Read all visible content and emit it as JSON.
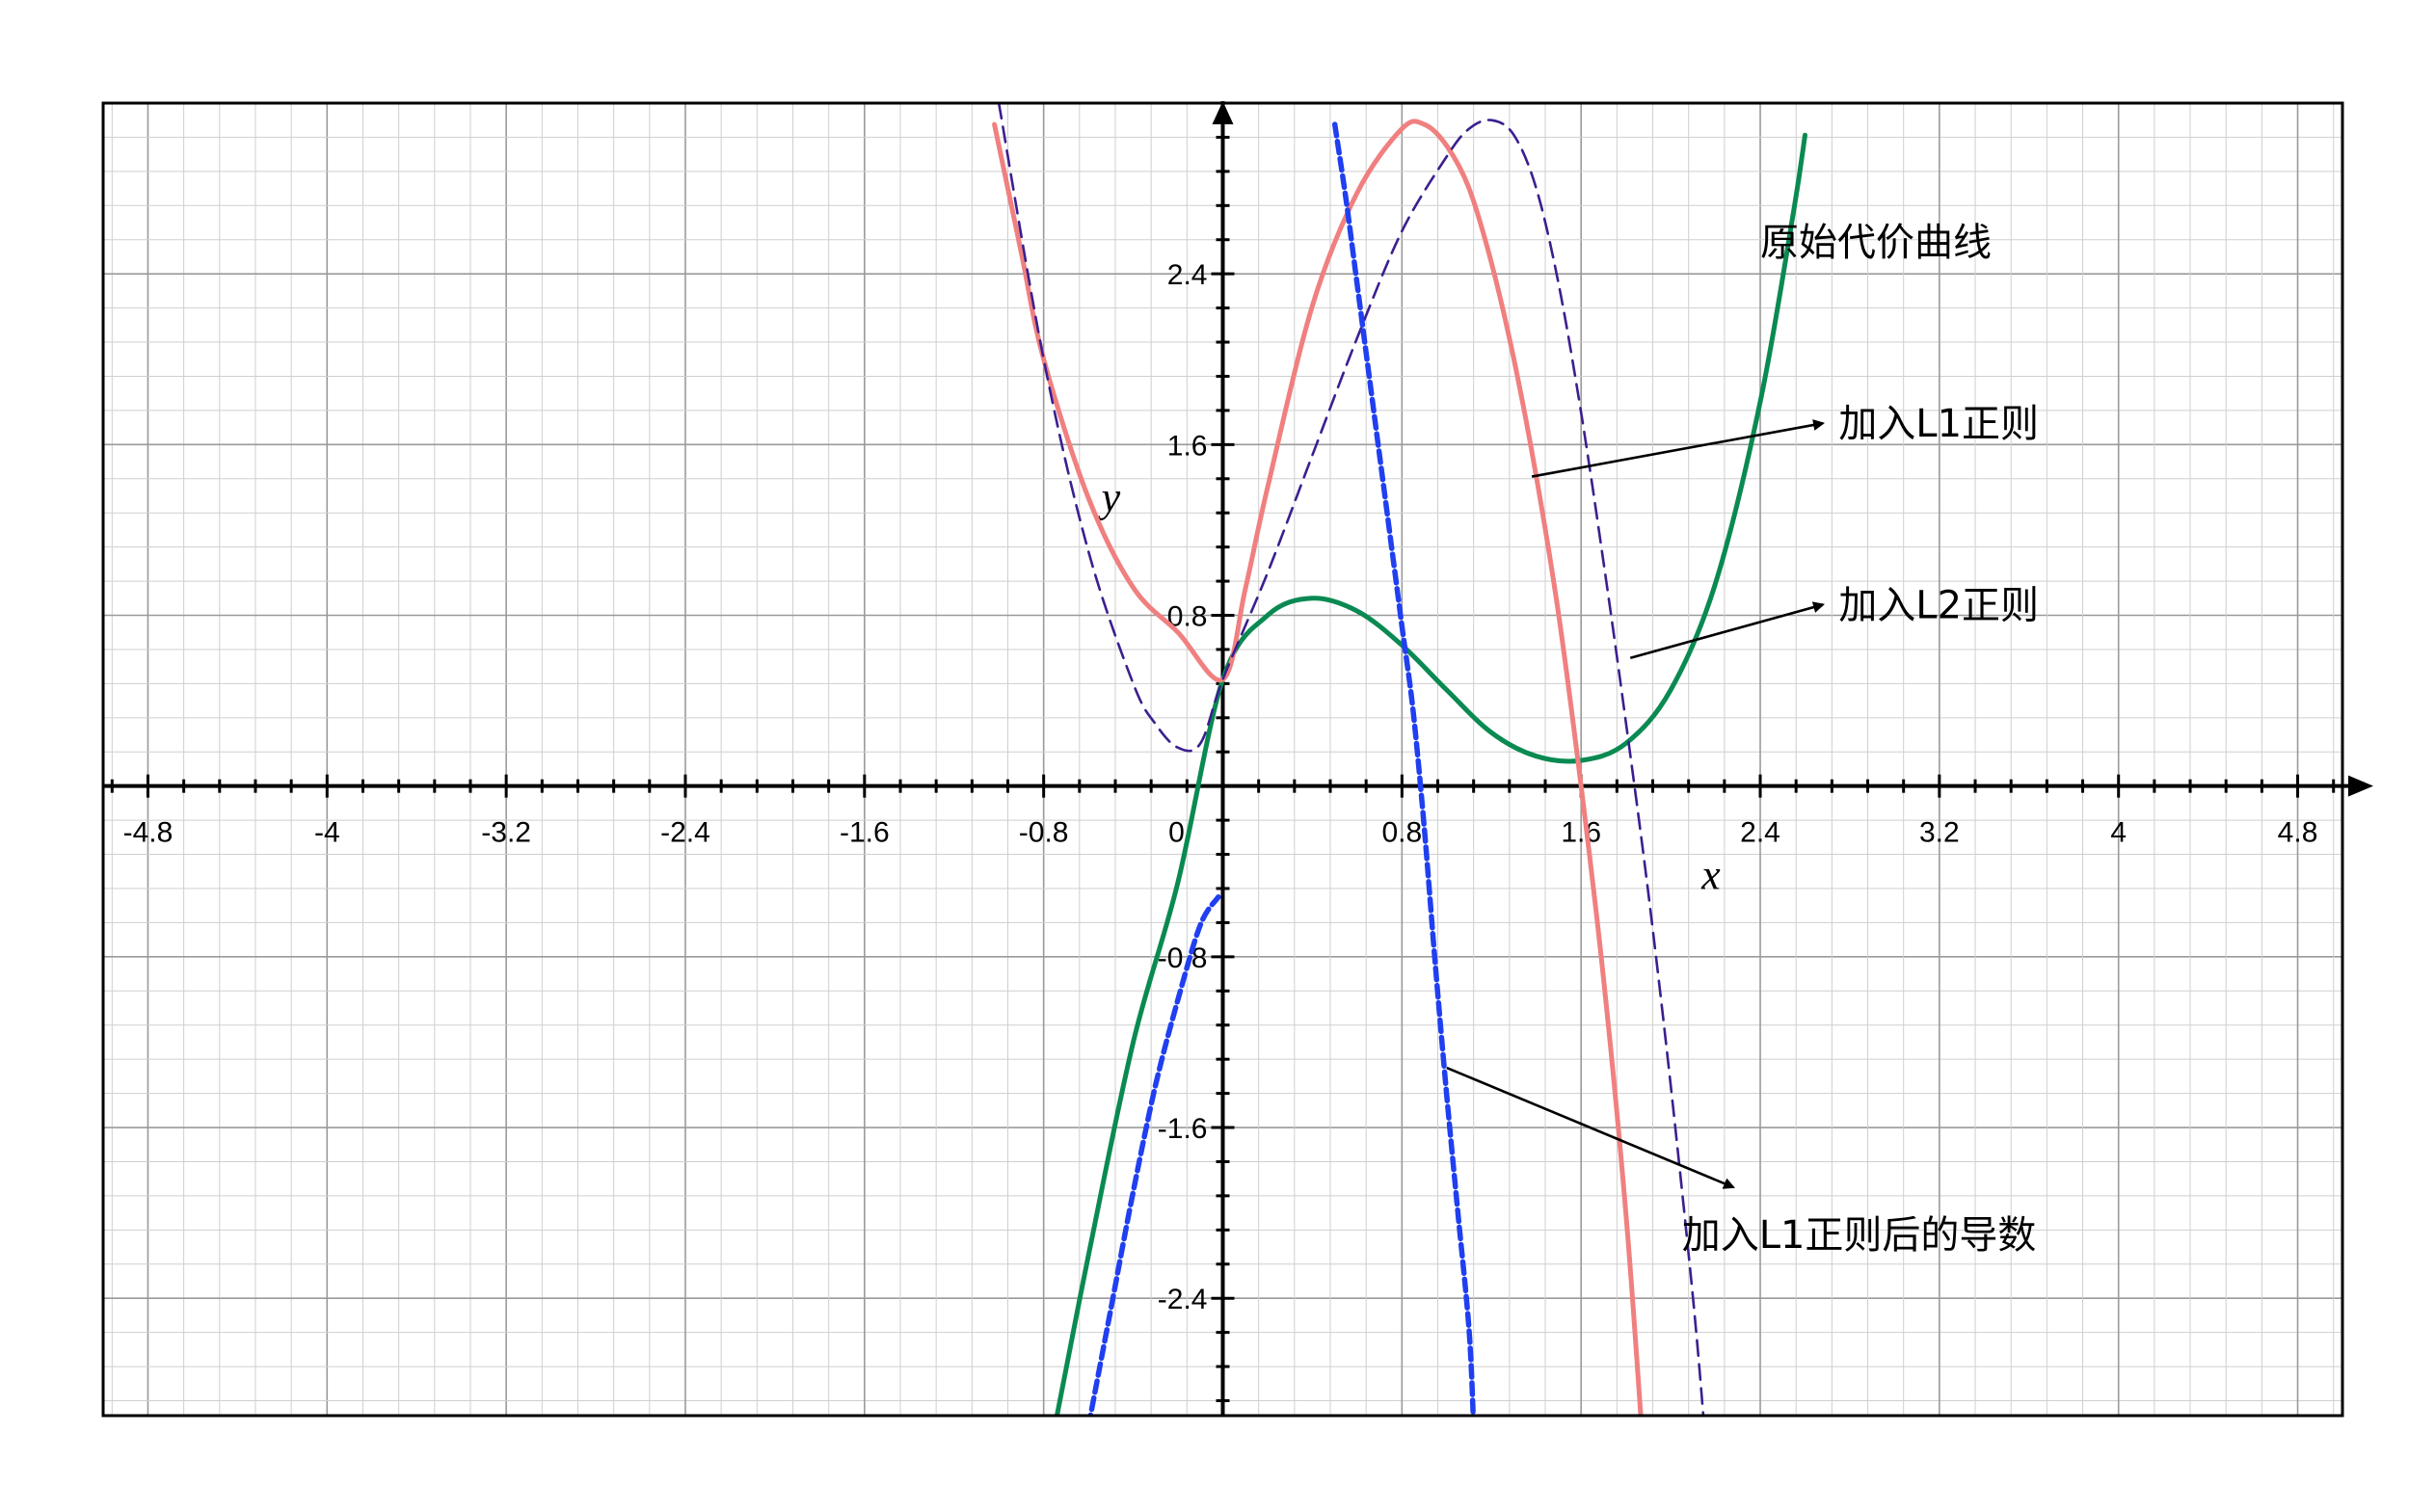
{
  "chart_data": {
    "type": "line",
    "title": "",
    "xlabel": "x",
    "ylabel": "y",
    "xlim": [
      -5.0,
      5.0
    ],
    "ylim": [
      -2.95,
      3.2
    ],
    "grid": true,
    "x_ticks": [
      "-4.8",
      "-4",
      "-3.2",
      "-2.4",
      "-1.6",
      "-0.8",
      "0",
      "0.8",
      "1.6",
      "2.4",
      "3.2",
      "4",
      "4.8"
    ],
    "y_ticks": [
      "2.4",
      "1.6",
      "0.8",
      "-0.8",
      "-1.6",
      "-2.4"
    ],
    "colors": {
      "original": "#0a8a52",
      "l1": "#f08080",
      "l2": "#3b1f8f",
      "l1_derivative": "#1f3ff0",
      "grid_major": "#9a9a9a",
      "grid_minor": "#cfcfcf",
      "axis": "#000000"
    },
    "series": [
      {
        "key": "original",
        "style": "solid",
        "points": [
          [
            -0.75,
            -3.0
          ],
          [
            -0.6,
            -2.2
          ],
          [
            -0.4,
            -1.2
          ],
          [
            -0.2,
            -0.45
          ],
          [
            0.0,
            0.5
          ],
          [
            0.2,
            0.8
          ],
          [
            0.4,
            0.88
          ],
          [
            0.6,
            0.82
          ],
          [
            0.8,
            0.66
          ],
          [
            1.0,
            0.45
          ],
          [
            1.2,
            0.25
          ],
          [
            1.4,
            0.14
          ],
          [
            1.6,
            0.12
          ],
          [
            1.8,
            0.2
          ],
          [
            2.0,
            0.45
          ],
          [
            2.2,
            0.95
          ],
          [
            2.4,
            1.8
          ],
          [
            2.55,
            2.7
          ],
          [
            2.6,
            3.05
          ]
        ]
      },
      {
        "key": "l1",
        "style": "solid",
        "points": [
          [
            -1.02,
            3.1
          ],
          [
            -0.9,
            2.5
          ],
          [
            -0.8,
            2.0
          ],
          [
            -0.6,
            1.35
          ],
          [
            -0.4,
            0.93
          ],
          [
            -0.2,
            0.72
          ],
          [
            0.0,
            0.5
          ],
          [
            0.1,
            0.92
          ],
          [
            0.2,
            1.4
          ],
          [
            0.4,
            2.25
          ],
          [
            0.6,
            2.78
          ],
          [
            0.8,
            3.08
          ],
          [
            0.9,
            3.1
          ],
          [
            1.0,
            3.0
          ],
          [
            1.1,
            2.8
          ],
          [
            1.2,
            2.45
          ],
          [
            1.3,
            2.0
          ],
          [
            1.4,
            1.45
          ],
          [
            1.5,
            0.8
          ],
          [
            1.6,
            0.0
          ],
          [
            1.7,
            -0.9
          ],
          [
            1.8,
            -2.0
          ],
          [
            1.87,
            -3.0
          ]
        ]
      },
      {
        "key": "l2",
        "style": "dashed",
        "points": [
          [
            -1.0,
            3.2
          ],
          [
            -0.8,
            2.0
          ],
          [
            -0.6,
            1.1
          ],
          [
            -0.4,
            0.48
          ],
          [
            -0.3,
            0.29
          ],
          [
            -0.2,
            0.18
          ],
          [
            -0.1,
            0.2
          ],
          [
            0.0,
            0.5
          ],
          [
            0.2,
            1.0
          ],
          [
            0.4,
            1.55
          ],
          [
            0.6,
            2.1
          ],
          [
            0.8,
            2.6
          ],
          [
            1.0,
            2.95
          ],
          [
            1.1,
            3.08
          ],
          [
            1.2,
            3.12
          ],
          [
            1.3,
            3.05
          ],
          [
            1.4,
            2.8
          ],
          [
            1.5,
            2.35
          ],
          [
            1.6,
            1.75
          ],
          [
            1.7,
            1.05
          ],
          [
            1.8,
            0.3
          ],
          [
            1.9,
            -0.5
          ],
          [
            2.0,
            -1.4
          ],
          [
            2.1,
            -2.4
          ],
          [
            2.15,
            -3.0
          ]
        ]
      },
      {
        "key": "l1_derivative",
        "style": "dotted",
        "segments": [
          [
            [
              -0.6,
              -3.0
            ],
            [
              -0.5,
              -2.45
            ],
            [
              -0.4,
              -1.9
            ],
            [
              -0.3,
              -1.4
            ],
            [
              -0.2,
              -1.0
            ],
            [
              -0.1,
              -0.65
            ],
            [
              -0.02,
              -0.52
            ]
          ],
          [
            [
              0.5,
              3.1
            ],
            [
              0.55,
              2.75
            ],
            [
              0.6,
              2.35
            ],
            [
              0.65,
              1.95
            ],
            [
              0.7,
              1.55
            ],
            [
              0.75,
              1.15
            ],
            [
              0.8,
              0.75
            ],
            [
              0.85,
              0.35
            ],
            [
              0.9,
              -0.2
            ],
            [
              0.95,
              -0.85
            ],
            [
              1.0,
              -1.45
            ],
            [
              1.05,
              -2.0
            ],
            [
              1.1,
              -2.55
            ],
            [
              1.12,
              -3.0
            ]
          ]
        ]
      }
    ],
    "annotations": [
      {
        "key": "original",
        "text": "原始代价曲线",
        "text_at": [
          2.4,
          2.55
        ]
      },
      {
        "key": "l1",
        "text": "加入L1正则",
        "text_at": [
          2.75,
          1.7
        ],
        "arrow_from": [
          1.38,
          1.45
        ],
        "arrow_to": [
          2.68,
          1.7
        ]
      },
      {
        "key": "l2",
        "text": "加入L2正则",
        "text_at": [
          2.75,
          0.85
        ],
        "arrow_from": [
          1.82,
          0.6
        ],
        "arrow_to": [
          2.68,
          0.85
        ]
      },
      {
        "key": "l1_derivative",
        "text": "加入L1正则后的导数",
        "text_at": [
          2.05,
          -2.1
        ],
        "arrow_from": [
          1.0,
          -1.32
        ],
        "arrow_to": [
          2.28,
          -1.88
        ]
      }
    ]
  }
}
